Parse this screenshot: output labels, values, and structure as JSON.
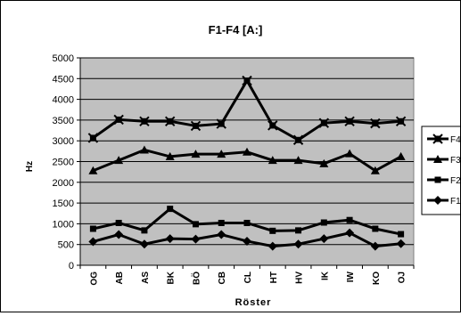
{
  "chart_data": {
    "type": "line",
    "title": "F1-F4  [A:]",
    "xlabel": "Röster",
    "ylabel": "Hz",
    "categories": [
      "OG",
      "AB",
      "AS",
      "BK",
      "BÖ",
      "CB",
      "CL",
      "HT",
      "HV",
      "IK",
      "IW",
      "KO",
      "OJ"
    ],
    "ylim": [
      0,
      5000
    ],
    "yticks": [
      0,
      500,
      1000,
      1500,
      2000,
      2500,
      3000,
      3500,
      4000,
      4500,
      5000
    ],
    "grid": true,
    "legend": "right",
    "plot_bg": "#c0c0c0",
    "line_color": "#000000",
    "series": [
      {
        "name": "F4",
        "marker": "x-square",
        "values": [
          3070,
          3510,
          3470,
          3470,
          3360,
          3410,
          4450,
          3370,
          3020,
          3430,
          3470,
          3420,
          3470
        ]
      },
      {
        "name": "F3",
        "marker": "triangle",
        "values": [
          2280,
          2530,
          2780,
          2620,
          2680,
          2680,
          2730,
          2530,
          2530,
          2450,
          2690,
          2280,
          2620
        ]
      },
      {
        "name": "F2",
        "marker": "square",
        "values": [
          880,
          1020,
          840,
          1360,
          990,
          1020,
          1020,
          830,
          840,
          1030,
          1090,
          880,
          750
        ]
      },
      {
        "name": "F1",
        "marker": "diamond",
        "values": [
          570,
          740,
          510,
          640,
          630,
          740,
          580,
          460,
          510,
          640,
          780,
          460,
          520
        ]
      }
    ]
  }
}
